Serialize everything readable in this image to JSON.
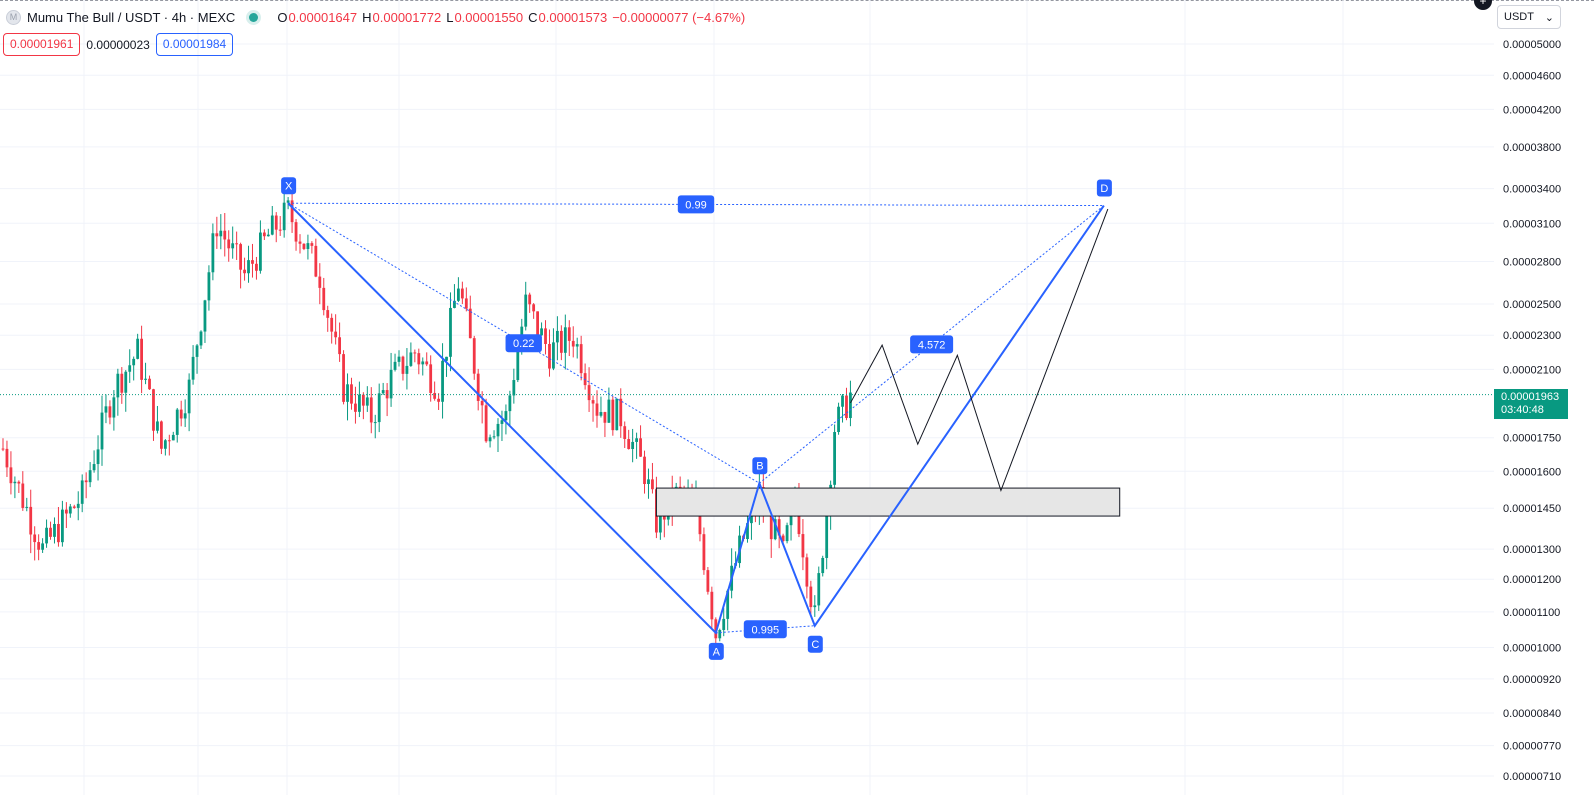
{
  "header": {
    "symbol_title": "Mumu The Bull / USDT · 4h · MEXC",
    "logo_glyph": "M",
    "ohlc": {
      "o_label": "O",
      "o_value": "0.00001647",
      "h_label": "H",
      "h_value": "0.00001772",
      "l_label": "L",
      "l_value": "0.00001550",
      "c_label": "C",
      "c_value": "0.00001573",
      "change": "−0.00000077 (−4.67%)"
    }
  },
  "quote": {
    "sell": "0.00001961",
    "spread": "0.00000023",
    "buy": "0.00001984"
  },
  "currency_selector": {
    "value": "USDT"
  },
  "current_price": {
    "value": "0.00001963",
    "countdown": "03:40:48"
  },
  "colors": {
    "up": "#089981",
    "down": "#f23645",
    "pattern": "#2962ff",
    "grid": "#f0f3fa"
  },
  "chart_data": {
    "type": "candlestick",
    "scale": "log",
    "y_axis_labels": [
      "0.00005000",
      "0.00004600",
      "0.00004200",
      "0.00003800",
      "0.00003400",
      "0.00003100",
      "0.00002800",
      "0.00002500",
      "0.00002300",
      "0.00002100",
      "0.00001750",
      "0.00001600",
      "0.00001450",
      "0.00001300",
      "0.00001200",
      "0.00001100",
      "0.00001000",
      "0.00000920",
      "0.00000840",
      "0.00000770",
      "0.00000710"
    ],
    "y_axis_values": [
      5e-05,
      4.6e-05,
      4.2e-05,
      3.8e-05,
      3.4e-05,
      3.1e-05,
      2.8e-05,
      2.5e-05,
      2.3e-05,
      2.1e-05,
      1.75e-05,
      1.6e-05,
      1.45e-05,
      1.3e-05,
      1.2e-05,
      1.1e-05,
      1e-05,
      9.2e-06,
      8.4e-06,
      7.7e-06,
      7.1e-06
    ],
    "last_price": 1.963e-05,
    "harmonic_pattern": {
      "points": [
        {
          "label": "X",
          "bar": 72,
          "price": 3.27e-05
        },
        {
          "label": "A",
          "bar": 180,
          "price": 1.04e-05
        },
        {
          "label": "B",
          "bar": 191,
          "price": 1.55e-05
        },
        {
          "label": "C",
          "bar": 205,
          "price": 1.06e-05
        },
        {
          "label": "D",
          "bar": 278,
          "price": 3.25e-05
        }
      ],
      "ratios": [
        {
          "label": "0.99",
          "between": [
            "X",
            "D"
          ]
        },
        {
          "label": "0.22",
          "between": [
            "X",
            "B"
          ]
        },
        {
          "label": "0.995",
          "between": [
            "A",
            "C"
          ]
        },
        {
          "label": "4.572",
          "between": [
            "B",
            "D"
          ]
        }
      ]
    },
    "zone": {
      "bar_from": 165,
      "bar_to": 282,
      "price_high": 1.53e-05,
      "price_low": 1.42e-05
    },
    "projection": [
      {
        "bar": 214,
        "price": 1.92e-05
      },
      {
        "bar": 222,
        "price": 2.24e-05
      },
      {
        "bar": 231,
        "price": 1.72e-05
      },
      {
        "bar": 241,
        "price": 2.18e-05
      },
      {
        "bar": 252,
        "price": 1.52e-05
      },
      {
        "bar": 279,
        "price": 3.22e-05
      }
    ],
    "anchors": [
      {
        "bar": 0,
        "price": 1.7e-05
      },
      {
        "bar": 10,
        "price": 1.3e-05
      },
      {
        "bar": 20,
        "price": 1.5e-05
      },
      {
        "bar": 28,
        "price": 2e-05
      },
      {
        "bar": 34,
        "price": 2.2e-05
      },
      {
        "bar": 40,
        "price": 1.7e-05
      },
      {
        "bar": 47,
        "price": 2e-05
      },
      {
        "bar": 54,
        "price": 3.1e-05
      },
      {
        "bar": 61,
        "price": 2.7e-05
      },
      {
        "bar": 67,
        "price": 3e-05
      },
      {
        "bar": 72,
        "price": 3.2e-05
      },
      {
        "bar": 80,
        "price": 2.7e-05
      },
      {
        "bar": 86,
        "price": 2e-05
      },
      {
        "bar": 93,
        "price": 1.85e-05
      },
      {
        "bar": 98,
        "price": 2.05e-05
      },
      {
        "bar": 104,
        "price": 2.2e-05
      },
      {
        "bar": 110,
        "price": 2e-05
      },
      {
        "bar": 115,
        "price": 2.65e-05
      },
      {
        "bar": 122,
        "price": 1.8e-05
      },
      {
        "bar": 127,
        "price": 1.85e-05
      },
      {
        "bar": 132,
        "price": 2.5e-05
      },
      {
        "bar": 138,
        "price": 2.2e-05
      },
      {
        "bar": 144,
        "price": 2.3e-05
      },
      {
        "bar": 150,
        "price": 1.9e-05
      },
      {
        "bar": 156,
        "price": 1.85e-05
      },
      {
        "bar": 162,
        "price": 1.6e-05
      },
      {
        "bar": 165,
        "price": 1.4e-05
      },
      {
        "bar": 170,
        "price": 1.5e-05
      },
      {
        "bar": 175,
        "price": 1.45e-05
      },
      {
        "bar": 180,
        "price": 1.04e-05
      },
      {
        "bar": 186,
        "price": 1.3e-05
      },
      {
        "bar": 191,
        "price": 1.5e-05
      },
      {
        "bar": 197,
        "price": 1.28e-05
      },
      {
        "bar": 200,
        "price": 1.5e-05
      },
      {
        "bar": 205,
        "price": 1.08e-05
      },
      {
        "bar": 208,
        "price": 1.45e-05
      },
      {
        "bar": 210,
        "price": 1.8e-05
      },
      {
        "bar": 214,
        "price": 1.96e-05
      }
    ]
  }
}
